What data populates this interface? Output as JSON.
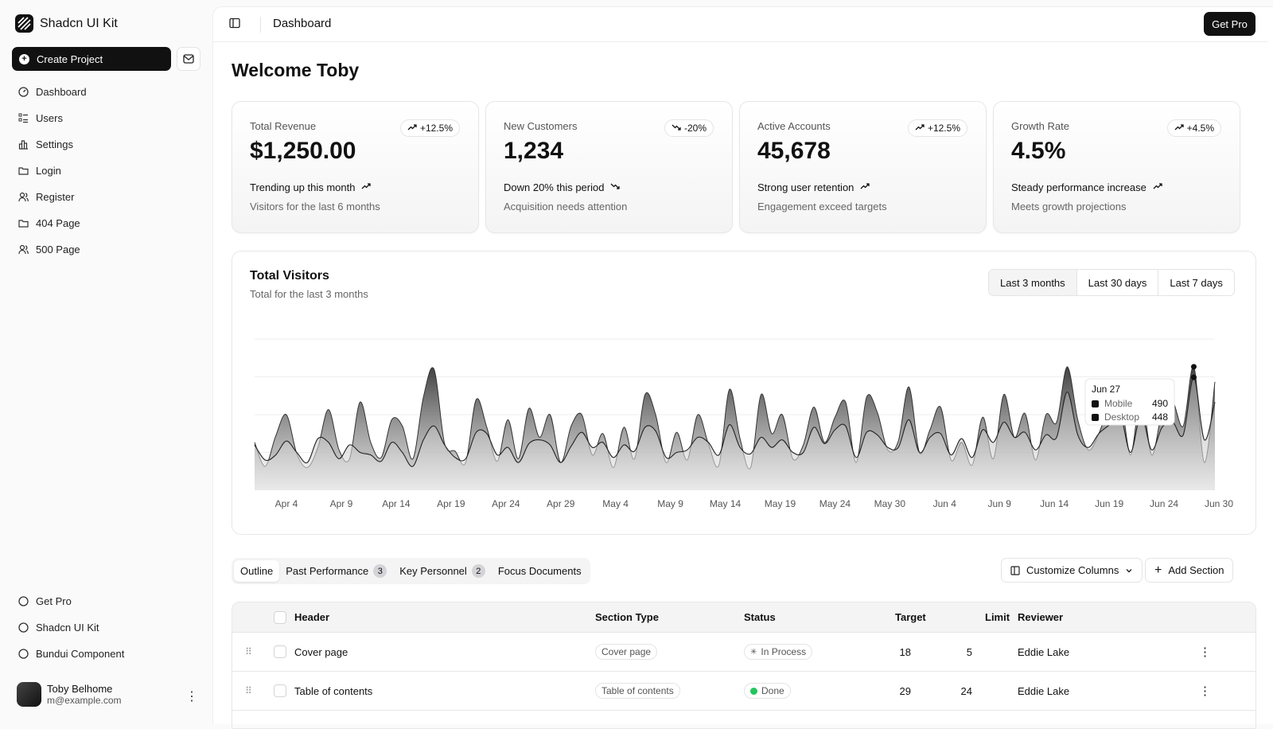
{
  "app": {
    "name": "Shadcn UI Kit"
  },
  "sidebar": {
    "create_label": "Create Project",
    "items": [
      {
        "label": "Dashboard",
        "icon": "gauge-icon"
      },
      {
        "label": "Users",
        "icon": "list-icon"
      },
      {
        "label": "Settings",
        "icon": "chart-icon"
      },
      {
        "label": "Login",
        "icon": "folder-icon"
      },
      {
        "label": "Register",
        "icon": "users-icon"
      },
      {
        "label": "404 Page",
        "icon": "folder-icon"
      },
      {
        "label": "500 Page",
        "icon": "users-icon"
      }
    ],
    "bottom_items": [
      {
        "label": "Get Pro"
      },
      {
        "label": "Shadcn UI Kit"
      },
      {
        "label": "Bundui Component"
      }
    ],
    "user": {
      "name": "Toby Belhome",
      "email": "m@example.com"
    }
  },
  "header": {
    "title": "Dashboard",
    "get_pro_label": "Get Pro"
  },
  "welcome": "Welcome Toby",
  "cards": [
    {
      "label": "Total Revenue",
      "value": "$1,250.00",
      "badge": "+12.5%",
      "trend": "Trending up this month",
      "sub": "Visitors for the last 6 months",
      "direction": "up"
    },
    {
      "label": "New Customers",
      "value": "1,234",
      "badge": "-20%",
      "trend": "Down 20% this period",
      "sub": "Acquisition needs attention",
      "direction": "down"
    },
    {
      "label": "Active Accounts",
      "value": "45,678",
      "badge": "+12.5%",
      "trend": "Strong user retention",
      "sub": "Engagement exceed targets",
      "direction": "up"
    },
    {
      "label": "Growth Rate",
      "value": "4.5%",
      "badge": "+4.5%",
      "trend": "Steady performance increase",
      "sub": "Meets growth projections",
      "direction": "up"
    }
  ],
  "visitors": {
    "title": "Total Visitors",
    "subtitle": "Total for the last 3 months",
    "ranges": [
      "Last 3 months",
      "Last 30 days",
      "Last 7 days"
    ],
    "active_range": "Last 3 months",
    "tooltip": {
      "date": "Jun 27",
      "rows": [
        {
          "name": "Mobile",
          "value": "490"
        },
        {
          "name": "Desktop",
          "value": "448"
        }
      ]
    }
  },
  "chart_data": {
    "type": "area",
    "x_ticks": [
      "Apr 4",
      "Apr 9",
      "Apr 14",
      "Apr 19",
      "Apr 24",
      "Apr 29",
      "May 4",
      "May 9",
      "May 14",
      "May 19",
      "May 24",
      "May 30",
      "Jun 4",
      "Jun 9",
      "Jun 14",
      "Jun 19",
      "Jun 24",
      "Jun 30"
    ],
    "ylim": [
      0,
      600
    ],
    "grid": true,
    "series": [
      {
        "name": "Mobile",
        "values": [
          190,
          95,
          215,
          300,
          145,
          90,
          170,
          320,
          160,
          125,
          350,
          190,
          130,
          280,
          255,
          125,
          370,
          480,
          185,
          155,
          110,
          360,
          250,
          115,
          280,
          125,
          325,
          210,
          300,
          110,
          255,
          300,
          140,
          225,
          90,
          250,
          125,
          380,
          300,
          110,
          230,
          120,
          300,
          185,
          100,
          400,
          205,
          90,
          380,
          225,
          300,
          125,
          180,
          330,
          190,
          290,
          350,
          110,
          370,
          310,
          160,
          195,
          410,
          150,
          240,
          330,
          120,
          190,
          100,
          290,
          125,
          380,
          210,
          305,
          120,
          300,
          270,
          490,
          280,
          160,
          225,
          340,
          385,
          140,
          380,
          140,
          310,
          350,
          255,
          490,
          110,
          430
        ]
      },
      {
        "name": "Desktop",
        "values": [
          180,
          120,
          140,
          195,
          150,
          110,
          205,
          190,
          125,
          180,
          150,
          140,
          115,
          190,
          150,
          95,
          200,
          255,
          180,
          130,
          125,
          230,
          225,
          140,
          170,
          110,
          185,
          200,
          180,
          110,
          175,
          230,
          170,
          190,
          130,
          180,
          155,
          250,
          235,
          130,
          150,
          160,
          210,
          190,
          140,
          260,
          170,
          145,
          210,
          170,
          200,
          150,
          150,
          250,
          185,
          240,
          255,
          130,
          230,
          220,
          170,
          170,
          280,
          150,
          210,
          225,
          140,
          205,
          130,
          240,
          190,
          270,
          210,
          230,
          160,
          220,
          210,
          390,
          220,
          170,
          225,
          260,
          305,
          150,
          300,
          160,
          250,
          270,
          220,
          448,
          200,
          350
        ]
      }
    ]
  },
  "tabs": [
    {
      "label": "Outline",
      "count": null
    },
    {
      "label": "Past Performance",
      "count": "3"
    },
    {
      "label": "Key Personnel",
      "count": "2"
    },
    {
      "label": "Focus Documents",
      "count": null
    }
  ],
  "actions": {
    "customize": "Customize Columns",
    "add_section": "Add Section"
  },
  "table": {
    "headers": [
      "Header",
      "Section Type",
      "Status",
      "Target",
      "Limit",
      "Reviewer"
    ],
    "rows": [
      {
        "header": "Cover page",
        "type": "Cover page",
        "status": "In Process",
        "target": "18",
        "limit": "5",
        "reviewer": "Eddie Lake"
      },
      {
        "header": "Table of contents",
        "type": "Table of contents",
        "status": "Done",
        "target": "29",
        "limit": "24",
        "reviewer": "Eddie Lake"
      }
    ]
  }
}
